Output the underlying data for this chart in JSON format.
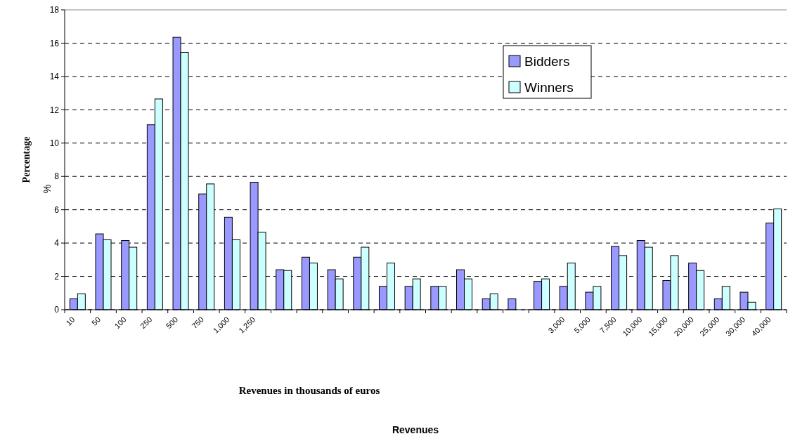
{
  "chart_data": {
    "type": "bar",
    "ylabel": "Percentage",
    "annotations": [
      "Revenues in thousands of euros",
      "%",
      "Revenues"
    ],
    "categories": [
      "10",
      "50",
      "100",
      "250",
      "500",
      "750",
      "1,000",
      "1,250",
      null,
      null,
      null,
      null,
      null,
      null,
      null,
      null,
      null,
      null,
      null,
      "3,000",
      "5,000",
      "7,500",
      "10,000",
      "15,000",
      "20,000",
      "25,000",
      "30,000",
      "40,000"
    ],
    "series": [
      {
        "name": "Bidders",
        "color": "#9999ff",
        "values": [
          0.65,
          4.55,
          4.15,
          11.1,
          16.35,
          6.95,
          5.55,
          7.65,
          2.4,
          3.15,
          2.4,
          3.15,
          1.4,
          1.4,
          1.4,
          2.4,
          0.65,
          0.65,
          1.7,
          1.4,
          1.05,
          3.8,
          4.15,
          1.75,
          2.8,
          0.65,
          1.05,
          5.2
        ]
      },
      {
        "name": "Winners",
        "color": "#ccffff",
        "values": [
          0.95,
          4.2,
          3.75,
          12.65,
          15.45,
          7.55,
          4.2,
          4.65,
          2.35,
          2.8,
          1.85,
          3.75,
          2.8,
          1.85,
          1.4,
          1.85,
          0.95,
          0,
          1.85,
          2.8,
          1.4,
          3.25,
          3.75,
          3.25,
          2.35,
          1.4,
          0.45,
          6.05
        ]
      }
    ],
    "ylim": [
      0,
      18
    ],
    "yticks": [
      0,
      2,
      4,
      6,
      8,
      10,
      12,
      14,
      16,
      18
    ],
    "grid": "y",
    "legend": "top"
  }
}
